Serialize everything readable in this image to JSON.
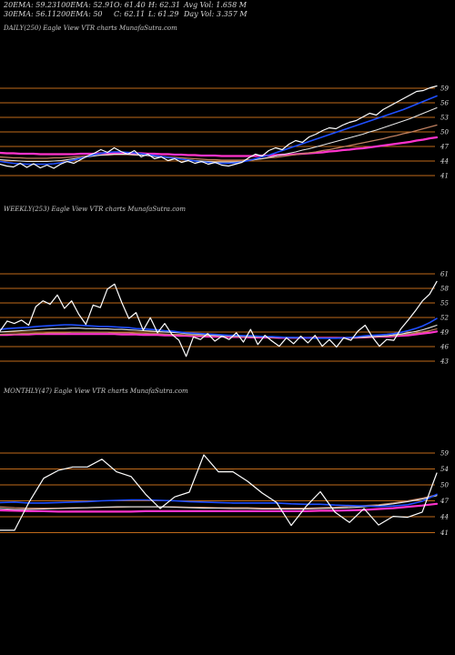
{
  "header": {
    "ema20": "20EMA: 59.23",
    "ema30": "30EMA: 56.11",
    "ema100": "100EMA: 52.91",
    "ema200": "200EMA: 50",
    "open": "O: 61.40",
    "close": "C: 62.11",
    "high": "H: 62.31",
    "low": "L: 61.29",
    "avg_vol": "Avg Vol: 1.658 M",
    "day_vol": "Day Vol: 3.357 M"
  },
  "colors": {
    "background": "#000000",
    "price": "#ffffff",
    "ema_fast": "#1f4fff",
    "ema_mid": "#e6e6e6",
    "ema_slow": "#c08060",
    "ema_long": "#ff33cc",
    "level_line": "#c06a1a"
  },
  "chart_data": [
    {
      "type": "line",
      "title": "DAILY(250) Eagle  View  VTR charts MunafaSutra.com",
      "ylabels": [
        "59",
        "56",
        "53",
        "50",
        "47",
        "44",
        "41"
      ],
      "series": [
        {
          "role": "price",
          "values": [
            42.4,
            42.0,
            41.8,
            42.6,
            41.7,
            42.5,
            41.6,
            42.2,
            41.5,
            42.4,
            43.0,
            42.6,
            43.4,
            44.2,
            44.8,
            45.6,
            45.0,
            46.0,
            45.2,
            44.6,
            45.4,
            44.0,
            44.6,
            43.6,
            44.0,
            43.2,
            43.6,
            42.8,
            43.2,
            42.6,
            43.0,
            42.4,
            42.8,
            42.2,
            42.0,
            42.4,
            42.8,
            43.8,
            44.6,
            44.2,
            45.4,
            46.0,
            45.6,
            46.8,
            47.6,
            47.2,
            48.4,
            49.0,
            49.8,
            50.4,
            50.2,
            51.0,
            51.6,
            52.0,
            52.8,
            53.6,
            53.2,
            54.4,
            55.2,
            56.0,
            56.8,
            57.6,
            58.4,
            58.6,
            59.2,
            59.6
          ]
        },
        {
          "role": "ema_fast",
          "values": [
            43.0,
            42.8,
            42.6,
            42.5,
            42.4,
            42.4,
            42.4,
            42.4,
            42.5,
            42.7,
            43.0,
            43.3,
            43.7,
            44.1,
            44.5,
            44.8,
            45.0,
            45.1,
            45.1,
            45.0,
            44.9,
            44.7,
            44.5,
            44.3,
            44.1,
            43.9,
            43.7,
            43.5,
            43.3,
            43.1,
            42.9,
            42.8,
            42.7,
            42.6,
            42.6,
            42.7,
            42.9,
            43.2,
            43.6,
            44.0,
            44.4,
            44.9,
            45.4,
            45.9,
            46.4,
            46.9,
            47.4,
            47.9,
            48.4,
            48.9,
            49.4,
            49.9,
            50.4,
            50.9,
            51.4,
            51.9,
            52.4,
            52.9,
            53.4,
            53.9,
            54.4,
            55.0,
            55.6,
            56.2,
            56.8,
            57.4
          ]
        },
        {
          "role": "ema_mid",
          "values": [
            43.4,
            43.3,
            43.2,
            43.1,
            43.0,
            43.0,
            43.0,
            43.0,
            43.1,
            43.2,
            43.4,
            43.6,
            43.8,
            44.0,
            44.2,
            44.4,
            44.5,
            44.6,
            44.6,
            44.6,
            44.5,
            44.4,
            44.3,
            44.1,
            44.0,
            43.8,
            43.7,
            43.5,
            43.4,
            43.2,
            43.1,
            43.0,
            42.9,
            42.9,
            42.9,
            42.9,
            43.0,
            43.2,
            43.4,
            43.6,
            43.9,
            44.2,
            44.5,
            44.8,
            45.1,
            45.5,
            45.8,
            46.2,
            46.6,
            47.0,
            47.4,
            47.8,
            48.2,
            48.6,
            49.0,
            49.5,
            49.9,
            50.4,
            50.9,
            51.4,
            51.9,
            52.4,
            53.0,
            53.6,
            54.2,
            54.8
          ]
        },
        {
          "role": "ema_slow",
          "values": [
            44.0,
            43.9,
            43.8,
            43.8,
            43.7,
            43.7,
            43.7,
            43.7,
            43.8,
            43.8,
            43.9,
            44.0,
            44.1,
            44.2,
            44.3,
            44.4,
            44.4,
            44.5,
            44.5,
            44.5,
            44.4,
            44.4,
            44.3,
            44.2,
            44.1,
            44.0,
            43.9,
            43.8,
            43.7,
            43.6,
            43.5,
            43.4,
            43.4,
            43.3,
            43.3,
            43.3,
            43.3,
            43.4,
            43.5,
            43.6,
            43.8,
            43.9,
            44.1,
            44.3,
            44.5,
            44.7,
            44.9,
            45.1,
            45.4,
            45.6,
            45.9,
            46.2,
            46.5,
            46.8,
            47.1,
            47.4,
            47.7,
            48.0,
            48.4,
            48.7,
            49.1,
            49.4,
            49.8,
            50.2,
            50.6,
            51.0
          ]
        },
        {
          "role": "ema_long",
          "values": [
            44.9,
            44.8,
            44.8,
            44.7,
            44.7,
            44.7,
            44.6,
            44.6,
            44.6,
            44.6,
            44.6,
            44.6,
            44.7,
            44.7,
            44.7,
            44.8,
            44.8,
            44.8,
            44.8,
            44.8,
            44.8,
            44.8,
            44.7,
            44.7,
            44.6,
            44.6,
            44.5,
            44.5,
            44.4,
            44.4,
            44.3,
            44.3,
            44.3,
            44.2,
            44.2,
            44.2,
            44.2,
            44.2,
            44.2,
            44.3,
            44.3,
            44.4,
            44.5,
            44.5,
            44.6,
            44.7,
            44.8,
            44.9,
            45.0,
            45.2,
            45.3,
            45.5,
            45.6,
            45.8,
            45.9,
            46.1,
            46.3,
            46.5,
            46.7,
            46.9,
            47.1,
            47.3,
            47.6,
            47.8,
            48.1,
            48.3
          ]
        }
      ]
    },
    {
      "type": "line",
      "title": "WEEKLY(253) Eagle  View  VTR charts MunafaSutra.com",
      "ylabels": [
        "61",
        "58",
        "55",
        "52",
        "49",
        "46",
        "43"
      ],
      "series": [
        {
          "role": "price",
          "values": [
            47.8,
            50.2,
            49.6,
            50.4,
            49.2,
            53.6,
            55.0,
            54.2,
            56.4,
            53.2,
            55.0,
            51.8,
            49.4,
            54.0,
            53.4,
            57.8,
            59.0,
            54.6,
            50.8,
            52.2,
            48.0,
            51.0,
            47.4,
            49.6,
            47.0,
            45.6,
            41.8,
            46.4,
            45.8,
            47.2,
            45.4,
            46.6,
            45.8,
            47.4,
            45.2,
            48.2,
            44.6,
            46.8,
            45.4,
            44.2,
            46.2,
            44.8,
            46.6,
            45.0,
            46.8,
            44.2,
            45.8,
            44.0,
            46.2,
            45.6,
            47.8,
            49.2,
            46.4,
            44.2,
            45.8,
            45.6,
            48.4,
            50.4,
            52.6,
            55.0,
            56.6,
            59.6
          ]
        },
        {
          "role": "ema_fast",
          "values": [
            48.2,
            48.4,
            48.5,
            48.6,
            48.7,
            48.9,
            49.0,
            49.1,
            49.2,
            49.3,
            49.3,
            49.2,
            49.1,
            49.0,
            48.9,
            48.9,
            48.8,
            48.7,
            48.6,
            48.4,
            48.3,
            48.2,
            48.1,
            47.9,
            47.8,
            47.6,
            47.4,
            47.3,
            47.2,
            47.1,
            47.0,
            46.9,
            46.8,
            46.8,
            46.7,
            46.7,
            46.6,
            46.5,
            46.5,
            46.4,
            46.3,
            46.3,
            46.2,
            46.2,
            46.1,
            46.1,
            46.1,
            46.1,
            46.2,
            46.3,
            46.5,
            46.7,
            46.8,
            46.9,
            47.0,
            47.2,
            47.5,
            47.9,
            48.4,
            49.0,
            49.8,
            50.8
          ]
        },
        {
          "role": "ema_mid",
          "values": [
            47.6,
            47.7,
            47.8,
            47.9,
            48.0,
            48.1,
            48.2,
            48.3,
            48.4,
            48.4,
            48.5,
            48.5,
            48.4,
            48.4,
            48.3,
            48.3,
            48.2,
            48.2,
            48.1,
            48.0,
            47.9,
            47.8,
            47.7,
            47.6,
            47.5,
            47.4,
            47.2,
            47.1,
            47.0,
            46.9,
            46.8,
            46.7,
            46.7,
            46.6,
            46.6,
            46.5,
            46.5,
            46.4,
            46.4,
            46.3,
            46.3,
            46.2,
            46.2,
            46.2,
            46.1,
            46.1,
            46.1,
            46.1,
            46.1,
            46.2,
            46.3,
            46.4,
            46.5,
            46.6,
            46.7,
            46.9,
            47.1,
            47.4,
            47.7,
            48.1,
            48.6,
            49.2
          ]
        },
        {
          "role": "ema_slow",
          "values": [
            47.0,
            47.1,
            47.1,
            47.2,
            47.2,
            47.3,
            47.3,
            47.4,
            47.4,
            47.4,
            47.5,
            47.5,
            47.5,
            47.5,
            47.5,
            47.5,
            47.4,
            47.4,
            47.4,
            47.3,
            47.3,
            47.2,
            47.2,
            47.1,
            47.0,
            47.0,
            46.9,
            46.8,
            46.8,
            46.7,
            46.7,
            46.6,
            46.6,
            46.5,
            46.5,
            46.4,
            46.4,
            46.4,
            46.3,
            46.3,
            46.3,
            46.2,
            46.2,
            46.2,
            46.2,
            46.2,
            46.2,
            46.2,
            46.2,
            46.2,
            46.3,
            46.3,
            46.4,
            46.5,
            46.6,
            46.7,
            46.9,
            47.1,
            47.3,
            47.6,
            47.9,
            48.3
          ]
        },
        {
          "role": "ema_long",
          "values": [
            46.9,
            46.9,
            47.0,
            47.0,
            47.0,
            47.1,
            47.1,
            47.1,
            47.1,
            47.1,
            47.1,
            47.1,
            47.1,
            47.1,
            47.1,
            47.1,
            47.1,
            47.0,
            47.0,
            47.0,
            46.9,
            46.9,
            46.9,
            46.8,
            46.8,
            46.7,
            46.7,
            46.6,
            46.6,
            46.5,
            46.5,
            46.5,
            46.4,
            46.4,
            46.4,
            46.3,
            46.3,
            46.3,
            46.3,
            46.2,
            46.2,
            46.2,
            46.2,
            46.2,
            46.2,
            46.2,
            46.2,
            46.2,
            46.2,
            46.2,
            46.3,
            46.3,
            46.4,
            46.5,
            46.5,
            46.6,
            46.7,
            46.8,
            47.0,
            47.2,
            47.4,
            47.7
          ]
        }
      ]
    },
    {
      "type": "line",
      "title": "MONTHLY(47) Eagle  View  VTR charts MunafaSutra.com",
      "ylabels": [
        "59",
        "54",
        "50",
        "47",
        "44",
        "41"
      ],
      "series": [
        {
          "role": "price",
          "values": [
            41.0,
            41.0,
            47.5,
            53.0,
            54.8,
            55.6,
            55.6,
            57.4,
            54.5,
            53.4,
            49.3,
            46.0,
            48.7,
            49.8,
            58.4,
            54.5,
            54.5,
            52.3,
            49.6,
            47.4,
            42.1,
            46.4,
            49.9,
            45.2,
            42.8,
            46.0,
            42.2,
            44.2,
            44.0,
            45.2,
            54.2
          ]
        },
        {
          "role": "ema_fast",
          "values": [
            47.4,
            47.5,
            47.3,
            47.3,
            47.4,
            47.5,
            47.6,
            47.8,
            47.9,
            48.0,
            48.0,
            47.9,
            47.8,
            47.6,
            47.5,
            47.4,
            47.3,
            47.3,
            47.3,
            47.3,
            47.1,
            47.0,
            47.0,
            46.8,
            46.7,
            46.6,
            46.5,
            46.6,
            46.9,
            47.7,
            49.3
          ]
        },
        {
          "role": "ema_mid",
          "values": [
            46.0,
            45.8,
            45.8,
            45.9,
            46.0,
            46.1,
            46.2,
            46.3,
            46.4,
            46.4,
            46.4,
            46.4,
            46.3,
            46.2,
            46.1,
            46.1,
            46.0,
            46.0,
            45.9,
            45.9,
            45.9,
            45.9,
            46.0,
            46.1,
            46.2,
            46.4,
            46.7,
            47.1,
            47.6,
            48.2,
            49.0
          ]
        },
        {
          "role": "ema_slow",
          "values": [
            46.4,
            46.2,
            46.1,
            46.1,
            46.1,
            46.2,
            46.2,
            46.3,
            46.3,
            46.4,
            46.4,
            46.4,
            46.4,
            46.3,
            46.3,
            46.2,
            46.2,
            46.2,
            46.1,
            46.1,
            46.1,
            46.1,
            46.2,
            46.3,
            46.5,
            46.7,
            46.9,
            47.3,
            47.8,
            48.4,
            49.2
          ]
        },
        {
          "role": "ema_long",
          "values": [
            45.6,
            45.5,
            45.4,
            45.4,
            45.3,
            45.3,
            45.3,
            45.3,
            45.3,
            45.3,
            45.4,
            45.4,
            45.4,
            45.4,
            45.4,
            45.4,
            45.4,
            45.4,
            45.4,
            45.4,
            45.4,
            45.4,
            45.5,
            45.5,
            45.6,
            45.7,
            45.9,
            46.1,
            46.4,
            46.7,
            47.1
          ]
        }
      ]
    }
  ]
}
